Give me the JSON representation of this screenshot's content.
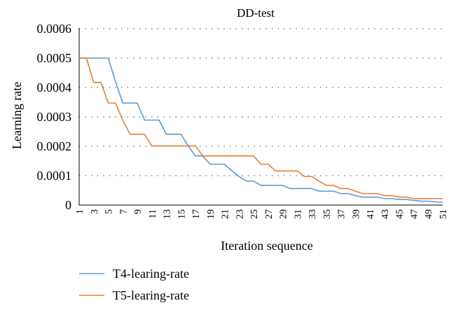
{
  "chart_data": {
    "type": "line",
    "title": "DD-test",
    "xlabel": "Iteration sequence",
    "ylabel": "Learning rate",
    "ylim": [
      0,
      0.0006
    ],
    "yticks": [
      "0",
      "0.0001",
      "0.0002",
      "0.0003",
      "0.0004",
      "0.0005",
      "0.0006"
    ],
    "x": [
      1,
      2,
      3,
      4,
      5,
      6,
      7,
      8,
      9,
      10,
      11,
      12,
      13,
      14,
      15,
      16,
      17,
      18,
      19,
      20,
      21,
      22,
      23,
      24,
      25,
      26,
      27,
      28,
      29,
      30,
      31,
      32,
      33,
      34,
      35,
      36,
      37,
      38,
      39,
      40,
      41,
      42,
      43,
      44,
      45,
      46,
      47,
      48,
      49,
      50,
      51
    ],
    "xticks": [
      1,
      3,
      5,
      7,
      9,
      11,
      13,
      15,
      17,
      19,
      21,
      23,
      25,
      27,
      29,
      31,
      33,
      35,
      37,
      39,
      41,
      43,
      45,
      47,
      49,
      51
    ],
    "grid": "horizontal dotted",
    "legend_position": "bottom-left",
    "series": [
      {
        "name": "T4-learing-rate",
        "color": "#5b9bd5",
        "values": [
          0.0005,
          0.0005,
          0.0005,
          0.0005,
          0.0005,
          0.00042,
          0.000347,
          0.000347,
          0.000347,
          0.000289,
          0.000289,
          0.000289,
          0.000241,
          0.000241,
          0.000241,
          0.000201,
          0.000167,
          0.000167,
          0.000139,
          0.000139,
          0.000139,
          0.000116,
          9.7e-05,
          8.1e-05,
          8.1e-05,
          6.7e-05,
          6.7e-05,
          6.7e-05,
          6.7e-05,
          5.6e-05,
          5.6e-05,
          5.6e-05,
          5.6e-05,
          4.7e-05,
          4.7e-05,
          4.7e-05,
          3.9e-05,
          3.9e-05,
          3.2e-05,
          2.7e-05,
          2.7e-05,
          2.7e-05,
          2.2e-05,
          2.2e-05,
          1.9e-05,
          1.9e-05,
          1.6e-05,
          1.3e-05,
          1.3e-05,
          1.1e-05,
          9e-06
        ]
      },
      {
        "name": "T5-learing-rate",
        "color": "#ed7d31",
        "values": [
          0.0005,
          0.0005,
          0.000417,
          0.000417,
          0.000347,
          0.000347,
          0.000289,
          0.000241,
          0.000241,
          0.000241,
          0.000201,
          0.000201,
          0.000201,
          0.000201,
          0.000201,
          0.000201,
          0.000201,
          0.000167,
          0.000167,
          0.000167,
          0.000167,
          0.000167,
          0.000167,
          0.000167,
          0.000167,
          0.000139,
          0.000139,
          0.000116,
          0.000116,
          0.000116,
          0.000116,
          9.7e-05,
          9.7e-05,
          8.1e-05,
          6.7e-05,
          6.7e-05,
          5.6e-05,
          5.6e-05,
          4.7e-05,
          3.9e-05,
          3.9e-05,
          3.9e-05,
          3.2e-05,
          3.2e-05,
          2.7e-05,
          2.7e-05,
          2.2e-05,
          2.2e-05,
          2.2e-05,
          2.2e-05,
          2.2e-05
        ]
      }
    ]
  }
}
